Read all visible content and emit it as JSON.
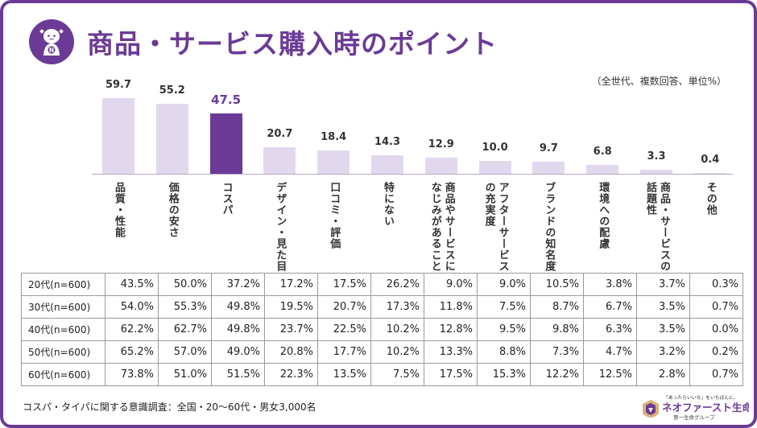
{
  "header": {
    "title": "商品・サービス購入時のポイント",
    "logo_icon": "mascot-character-icon",
    "logo_badge_letter": "N"
  },
  "note": "（全世代、複数回答、単位%）",
  "colors": {
    "accent": "#6b3a96",
    "bar": "#e2d8ee"
  },
  "chart_data": {
    "type": "bar",
    "title": "",
    "xlabel": "",
    "ylabel": "",
    "ylim": [
      0,
      60
    ],
    "grid": false,
    "categories": [
      [
        "品質・性能"
      ],
      [
        "価格の安さ"
      ],
      [
        "コスパ"
      ],
      [
        "デザイン・見た目"
      ],
      [
        "口コミ・評価"
      ],
      [
        "特にない"
      ],
      [
        "商品やサービスに",
        "なじみがあること"
      ],
      [
        "アフターサービス",
        "の充実度"
      ],
      [
        "ブランドの知名度"
      ],
      [
        "環境への配慮"
      ],
      [
        "商品・サービスの",
        "話題性"
      ],
      [
        "その他"
      ]
    ],
    "values": [
      59.7,
      55.2,
      47.5,
      20.7,
      18.4,
      14.3,
      12.9,
      10.0,
      9.7,
      6.8,
      3.3,
      0.4
    ],
    "value_labels": [
      "59.7",
      "55.2",
      "47.5",
      "20.7",
      "18.4",
      "14.3",
      "12.9",
      "10.0",
      "9.7",
      "6.8",
      "3.3",
      "0.4"
    ],
    "highlight_index": 2
  },
  "table": {
    "rows": [
      {
        "label": "20代(n=600)",
        "values": [
          "43.5%",
          "50.0%",
          "37.2%",
          "17.2%",
          "17.5%",
          "26.2%",
          "9.0%",
          "9.0%",
          "10.5%",
          "3.8%",
          "3.7%",
          "0.3%"
        ]
      },
      {
        "label": "30代(n=600)",
        "values": [
          "54.0%",
          "55.3%",
          "49.8%",
          "19.5%",
          "20.7%",
          "17.3%",
          "11.8%",
          "7.5%",
          "8.7%",
          "6.7%",
          "3.5%",
          "0.7%"
        ]
      },
      {
        "label": "40代(n=600)",
        "values": [
          "62.2%",
          "62.7%",
          "49.8%",
          "23.7%",
          "22.5%",
          "10.2%",
          "12.8%",
          "9.5%",
          "9.8%",
          "6.3%",
          "3.5%",
          "0.0%"
        ]
      },
      {
        "label": "50代(n=600)",
        "values": [
          "65.2%",
          "57.0%",
          "49.0%",
          "20.8%",
          "17.7%",
          "10.2%",
          "13.3%",
          "8.8%",
          "7.3%",
          "4.7%",
          "3.2%",
          "0.2%"
        ]
      },
      {
        "label": "60代(n=600)",
        "values": [
          "73.8%",
          "51.0%",
          "51.5%",
          "22.3%",
          "13.5%",
          "7.5%",
          "17.5%",
          "15.3%",
          "12.2%",
          "12.5%",
          "2.8%",
          "0.7%"
        ]
      }
    ]
  },
  "footnote": "コスパ・タイパに関する意識調査：全国・20〜60代・男女3,000名",
  "brand": {
    "tagline": "「あったらいいな」をいちばんに。",
    "name": "ネオファースト生命",
    "group": "第一生命グループ",
    "icon": "neofirst-emblem-icon"
  }
}
